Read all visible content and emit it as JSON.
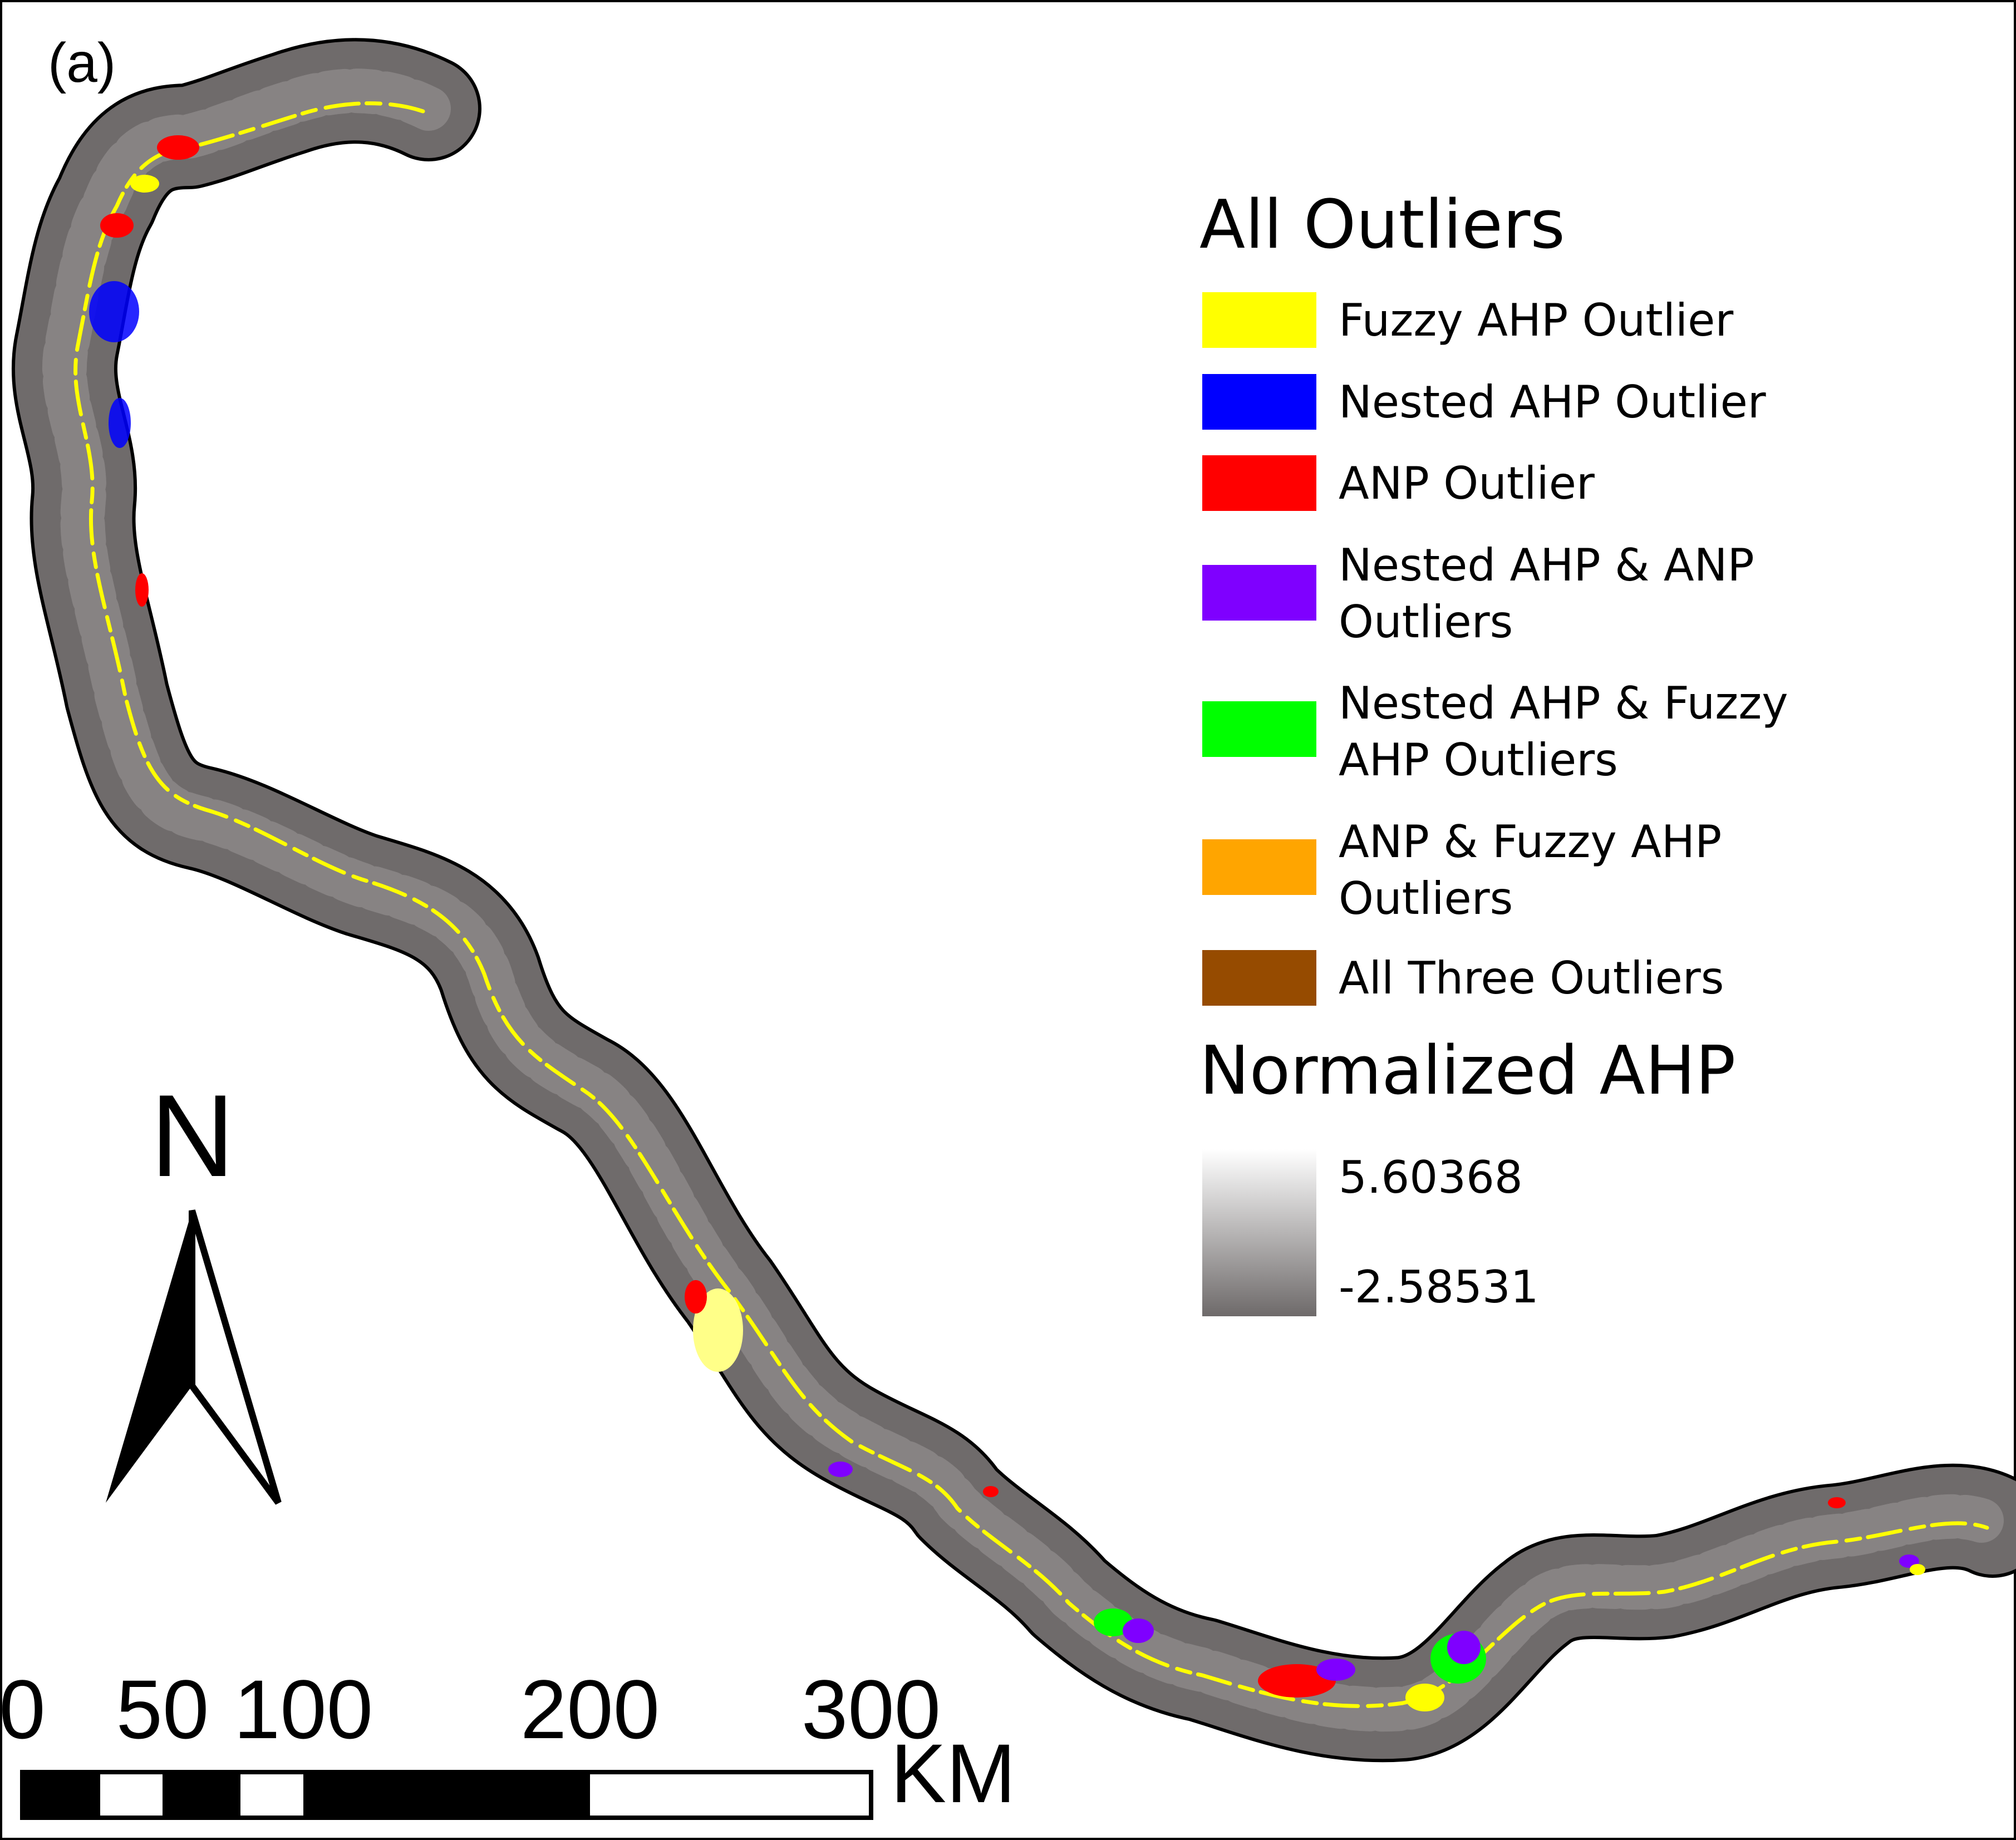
{
  "panel_label": "(a)",
  "legend": {
    "outliers_title": "All Outliers",
    "items": [
      {
        "label": "Fuzzy AHP Outlier",
        "color": "#ffff00"
      },
      {
        "label": "Nested AHP Outlier",
        "color": "#0000ff"
      },
      {
        "label": "ANP Outlier",
        "color": "#ff0000"
      },
      {
        "label": "Nested AHP & ANP\nOutliers",
        "color": "#7f00ff"
      },
      {
        "label": "Nested AHP & Fuzzy\nAHP Outliers",
        "color": "#00ff00"
      },
      {
        "label": "ANP & Fuzzy AHP\nOutliers",
        "color": "#ffa500"
      },
      {
        "label": "All Three Outliers",
        "color": "#964b00"
      }
    ],
    "gradient_title": "Normalized AHP",
    "gradient_max": "5.60368",
    "gradient_min": "-2.58531",
    "gradient_colors": {
      "high": "#ffffff",
      "low": "#6e6a6a"
    }
  },
  "north_arrow": {
    "label": "N"
  },
  "scale_bar": {
    "ticks": [
      "0",
      "50",
      "100",
      "200",
      "300"
    ],
    "unit": "KM"
  },
  "map_colors": {
    "corridor": "#6f6b6b",
    "river": "#ffff00",
    "outline": "#000000"
  }
}
